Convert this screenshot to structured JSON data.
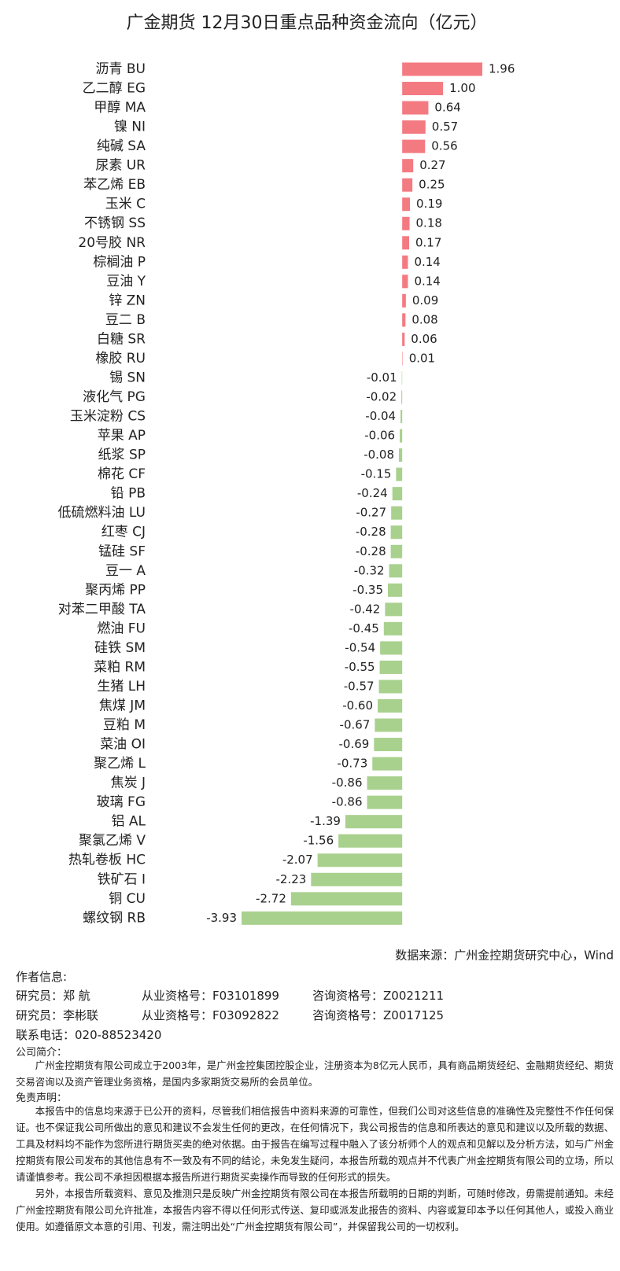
{
  "chart_data": {
    "type": "hbar",
    "title": "广金期货 12月30日重点品种资金流向（亿元）",
    "categories": [
      "沥青 BU",
      "乙二醇 EG",
      "甲醇 MA",
      "镍 NI",
      "纯碱 SA",
      "尿素 UR",
      "苯乙烯 EB",
      "玉米 C",
      "不锈钢 SS",
      "20号胶 NR",
      "棕榈油 P",
      "豆油 Y",
      "锌 ZN",
      "豆二 B",
      "白糖 SR",
      "橡胶 RU",
      "锡 SN",
      "液化气 PG",
      "玉米淀粉 CS",
      "苹果 AP",
      "纸浆 SP",
      "棉花 CF",
      "铅 PB",
      "低硫燃料油 LU",
      "红枣 CJ",
      "锰硅 SF",
      "豆一 A",
      "聚丙烯 PP",
      "对苯二甲酸 TA",
      "燃油 FU",
      "硅铁 SM",
      "菜粕 RM",
      "生猪 LH",
      "焦煤 JM",
      "豆粕 M",
      "菜油 OI",
      "聚乙烯 L",
      "焦炭 J",
      "玻璃 FG",
      "铝 AL",
      "聚氯乙烯 V",
      "热轧卷板 HC",
      "铁矿石 I",
      "铜 CU",
      "螺纹钢 RB"
    ],
    "values": [
      1.96,
      1.0,
      0.64,
      0.57,
      0.56,
      0.27,
      0.25,
      0.19,
      0.18,
      0.17,
      0.14,
      0.14,
      0.09,
      0.08,
      0.06,
      0.01,
      -0.01,
      -0.02,
      -0.04,
      -0.06,
      -0.08,
      -0.15,
      -0.24,
      -0.27,
      -0.28,
      -0.28,
      -0.32,
      -0.35,
      -0.42,
      -0.45,
      -0.54,
      -0.55,
      -0.57,
      -0.6,
      -0.67,
      -0.69,
      -0.73,
      -0.86,
      -0.86,
      -1.39,
      -1.56,
      -2.07,
      -2.23,
      -2.72,
      -3.93
    ],
    "value_labels": [
      "1.96",
      "1.00",
      "0.64",
      "0.57",
      "0.56",
      "0.27",
      "0.25",
      "0.19",
      "0.18",
      "0.17",
      "0.14",
      "0.14",
      "0.09",
      "0.08",
      "0.06",
      "0.01",
      "-0.01",
      "-0.02",
      "-0.04",
      "-0.06",
      "-0.08",
      "-0.15",
      "-0.24",
      "-0.27",
      "-0.28",
      "-0.28",
      "-0.32",
      "-0.35",
      "-0.42",
      "-0.45",
      "-0.54",
      "-0.55",
      "-0.57",
      "-0.60",
      "-0.67",
      "-0.69",
      "-0.73",
      "-0.86",
      "-0.86",
      "-1.39",
      "-1.56",
      "-2.07",
      "-2.23",
      "-2.72",
      "-3.93"
    ],
    "positive_color": "#f47a82",
    "negative_color": "#a9d18e",
    "source": "数据来源：广州金控期货研究中心，Wind"
  },
  "author": {
    "heading": "作者信息:",
    "researchers": [
      [
        "研究员：郑 航",
        "从业资格号：F03101899",
        "咨询资格号：Z0021211"
      ],
      [
        "研究员：李彬联",
        "从业资格号：F03092822",
        "咨询资格号：Z0017125"
      ]
    ],
    "phone": "联系电话：020-88523420"
  },
  "company": {
    "heading": "公司简介：",
    "text": "广州金控期货有限公司成立于2003年，是广州金控集团控股企业，注册资本为8亿元人民币，具有商品期货经纪、金融期货经纪、期货交易咨询以及资产管理业务资格，是国内多家期货交易所的会员单位。"
  },
  "disclaimer": {
    "heading": "免责声明：",
    "paragraphs": [
      "本报告中的信息均来源于已公开的资料，尽管我们相信报告中资料来源的可靠性，但我们公司对这些信息的准确性及完整性不作任何保证。也不保证我公司所做出的意见和建议不会发生任何的更改，在任何情况下，我公司报告的信息和所表达的意见和建议以及所载的数据、工具及材料均不能作为您所进行期货买卖的绝对依据。由于报告在编写过程中融入了该分析师个人的观点和见解以及分析方法，如与广州金控期货有限公司发布的其他信息有不一致及有不同的结论，未免发生疑问，本报告所载的观点并不代表广州金控期货有限公司的立场，所以请谨慎参考。我公司不承担因根据本报告所进行期货买卖操作而导致的任何形式的损失。",
      "另外，本报告所载资料、意见及推测只是反映广州金控期货有限公司在本报告所载明的日期的判断，可随时修改，毋需提前通知。未经广州金控期货有限公司允许批准，本报告内容不得以任何形式传送、复印或派发此报告的资料、内容或复印本予以任何其他人，或投入商业使用。如遵循原文本意的引用、刊发，需注明出处“广州金控期货有限公司”，并保留我公司的一切权利。"
    ]
  }
}
